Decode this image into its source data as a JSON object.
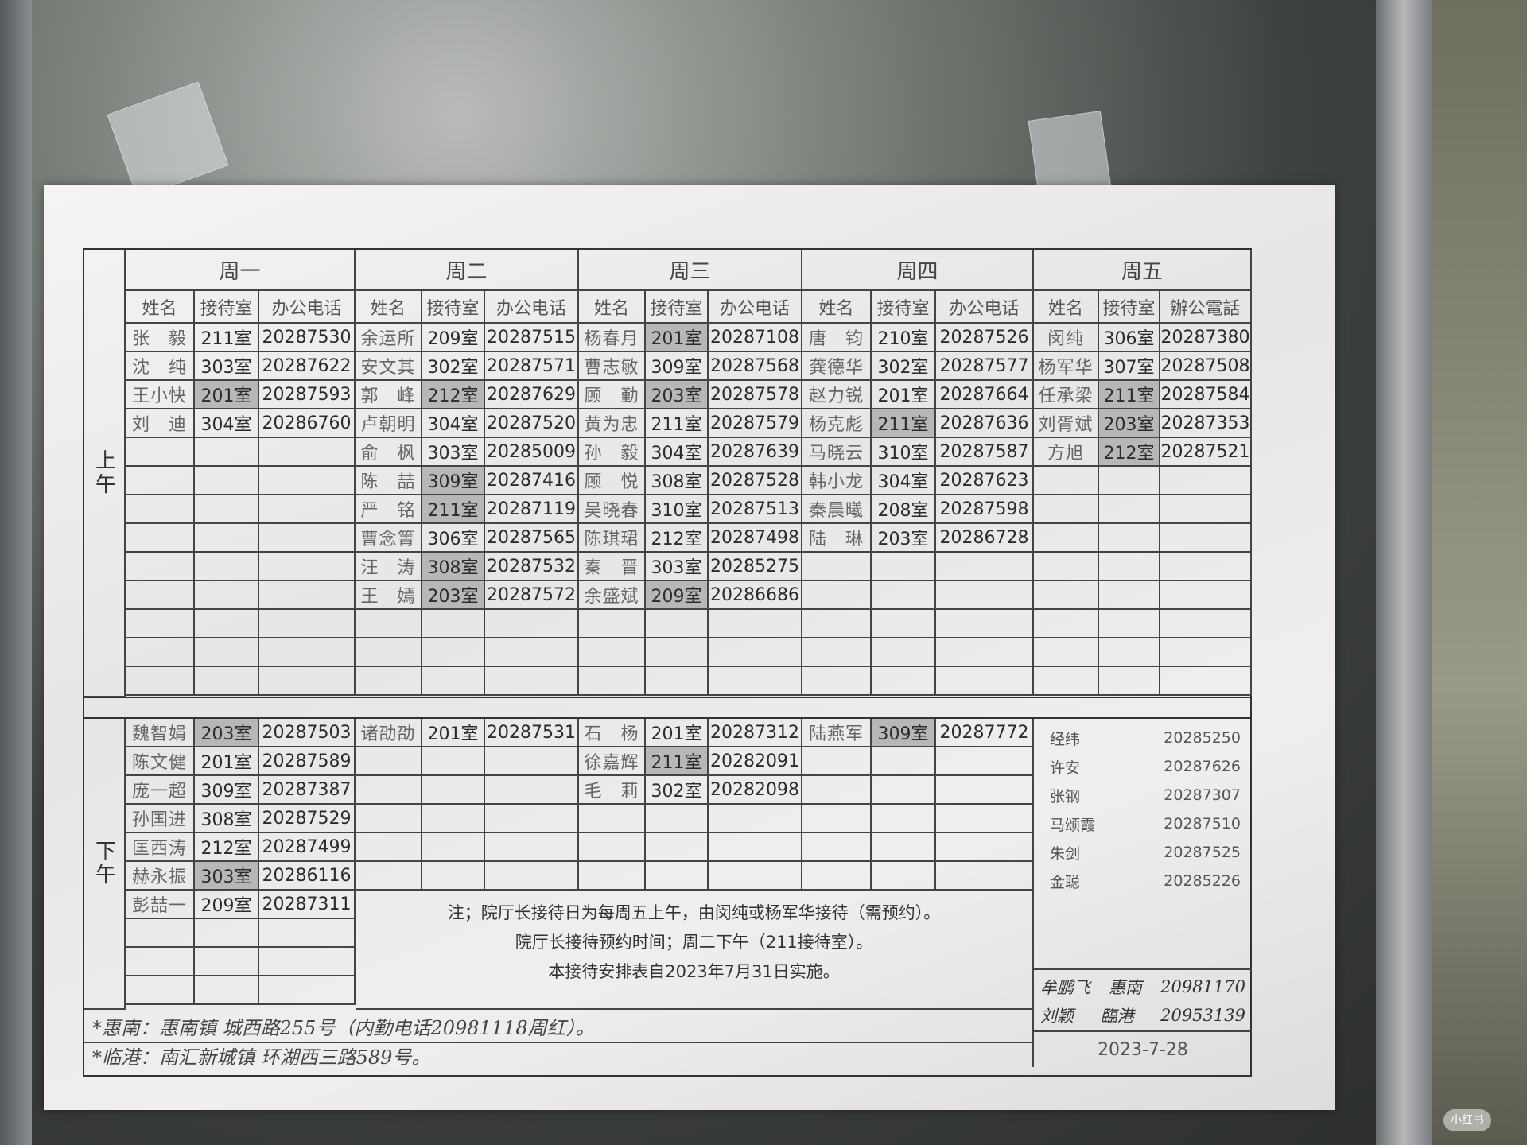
{
  "periods": {
    "am": "上午",
    "pm": "下午"
  },
  "days": [
    {
      "label": "周一",
      "headers": [
        "姓名",
        "接待室",
        "办公电话"
      ],
      "am": [
        {
          "n": "张　毅",
          "r": "211室",
          "p": "20287530",
          "s": false
        },
        {
          "n": "沈　纯",
          "r": "303室",
          "p": "20287622",
          "s": false
        },
        {
          "n": "王小快",
          "r": "201室",
          "p": "20287593",
          "s": true
        },
        {
          "n": "刘　迪",
          "r": "304室",
          "p": "20286760",
          "s": false
        }
      ],
      "pm": [
        {
          "n": "魏智娟",
          "r": "203室",
          "p": "20287503",
          "s": true
        },
        {
          "n": "陈文健",
          "r": "201室",
          "p": "20287589",
          "s": false
        },
        {
          "n": "庞一超",
          "r": "309室",
          "p": "20287387",
          "s": false
        },
        {
          "n": "孙国进",
          "r": "308室",
          "p": "20287529",
          "s": false
        },
        {
          "n": "匡西涛",
          "r": "212室",
          "p": "20287499",
          "s": false
        },
        {
          "n": "赫永振",
          "r": "303室",
          "p": "20286116",
          "s": true
        },
        {
          "n": "彭喆一",
          "r": "209室",
          "p": "20287311",
          "s": false
        }
      ]
    },
    {
      "label": "周二",
      "headers": [
        "姓名",
        "接待室",
        "办公电话"
      ],
      "am": [
        {
          "n": "余运所",
          "r": "209室",
          "p": "20287515",
          "s": false
        },
        {
          "n": "安文其",
          "r": "302室",
          "p": "20287571",
          "s": false
        },
        {
          "n": "郭　峰",
          "r": "212室",
          "p": "20287629",
          "s": true
        },
        {
          "n": "卢朝明",
          "r": "304室",
          "p": "20287520",
          "s": false
        },
        {
          "n": "俞　枫",
          "r": "303室",
          "p": "20285009",
          "s": false
        },
        {
          "n": "陈　喆",
          "r": "309室",
          "p": "20287416",
          "s": true
        },
        {
          "n": "严　铭",
          "r": "211室",
          "p": "20287119",
          "s": true
        },
        {
          "n": "曹念箐",
          "r": "306室",
          "p": "20287565",
          "s": false
        },
        {
          "n": "汪　涛",
          "r": "308室",
          "p": "20287532",
          "s": true
        },
        {
          "n": "王　嫣",
          "r": "203室",
          "p": "20287572",
          "s": true
        }
      ],
      "pm": [
        {
          "n": "诸劭劭",
          "r": "201室",
          "p": "20287531",
          "s": false
        }
      ]
    },
    {
      "label": "周三",
      "headers": [
        "姓名",
        "接待室",
        "办公电话"
      ],
      "am": [
        {
          "n": "杨春月",
          "r": "201室",
          "p": "20287108",
          "s": true
        },
        {
          "n": "曹志敏",
          "r": "309室",
          "p": "20287568",
          "s": false
        },
        {
          "n": "顾　勤",
          "r": "203室",
          "p": "20287578",
          "s": true
        },
        {
          "n": "黄为忠",
          "r": "211室",
          "p": "20287579",
          "s": false
        },
        {
          "n": "孙　毅",
          "r": "304室",
          "p": "20287639",
          "s": false
        },
        {
          "n": "顾　悦",
          "r": "308室",
          "p": "20287528",
          "s": false
        },
        {
          "n": "吴晓春",
          "r": "310室",
          "p": "20287513",
          "s": false
        },
        {
          "n": "陈琪珺",
          "r": "212室",
          "p": "20287498",
          "s": false
        },
        {
          "n": "秦　晋",
          "r": "303室",
          "p": "20285275",
          "s": false
        },
        {
          "n": "余盛斌",
          "r": "209室",
          "p": "20286686",
          "s": true
        }
      ],
      "pm": [
        {
          "n": "石　杨",
          "r": "201室",
          "p": "20287312",
          "s": false
        },
        {
          "n": "徐嘉辉",
          "r": "211室",
          "p": "20282091",
          "s": true
        },
        {
          "n": "毛　莉",
          "r": "302室",
          "p": "20282098",
          "s": false
        }
      ]
    },
    {
      "label": "周四",
      "headers": [
        "姓名",
        "接待室",
        "办公电话"
      ],
      "am": [
        {
          "n": "唐　钧",
          "r": "210室",
          "p": "20287526",
          "s": false
        },
        {
          "n": "龚德华",
          "r": "302室",
          "p": "20287577",
          "s": false
        },
        {
          "n": "赵力锐",
          "r": "201室",
          "p": "20287664",
          "s": false
        },
        {
          "n": "杨克彪",
          "r": "211室",
          "p": "20287636",
          "s": true
        },
        {
          "n": "马晓云",
          "r": "310室",
          "p": "20287587",
          "s": false
        },
        {
          "n": "韩小龙",
          "r": "304室",
          "p": "20287623",
          "s": false
        },
        {
          "n": "秦晨曦",
          "r": "208室",
          "p": "20287598",
          "s": false
        },
        {
          "n": "陆　琳",
          "r": "203室",
          "p": "20286728",
          "s": false
        }
      ],
      "pm": [
        {
          "n": "陆燕军",
          "r": "309室",
          "p": "20287772",
          "s": true
        }
      ]
    },
    {
      "label": "周五",
      "headers": [
        "姓名",
        "接待室",
        "辦公電話"
      ],
      "am": [
        {
          "n": "闵纯",
          "r": "306室",
          "p": "20287380",
          "s": false
        },
        {
          "n": "杨军华",
          "r": "307室",
          "p": "20287508",
          "s": false
        },
        {
          "n": "任承梁",
          "r": "211室",
          "p": "20287584",
          "s": true
        },
        {
          "n": "刘胥斌",
          "r": "203室",
          "p": "20287353",
          "s": true
        },
        {
          "n": "方旭",
          "r": "212室",
          "p": "20287521",
          "s": true
        }
      ],
      "pm": []
    }
  ],
  "friday_pm_list": [
    {
      "n": "经纬",
      "p": "20285250"
    },
    {
      "n": "许安",
      "p": "20287626"
    },
    {
      "n": "张钢",
      "p": "20287307"
    },
    {
      "n": "马颂霞",
      "p": "20287510"
    },
    {
      "n": "朱剑",
      "p": "20287525"
    },
    {
      "n": "金聪",
      "p": "20285226"
    }
  ],
  "leaders": [
    {
      "n": "牟鹏飞",
      "place": "惠南",
      "p": "20981170"
    },
    {
      "n": "刘颖",
      "place": "臨港",
      "p": "20953139"
    }
  ],
  "date": "2023-7-28",
  "notes": [
    "注；院厅长接待日为每周五上午，由闵纯或杨军华接待（需预约）。",
    "院厅长接待预约时间；周二下午（211接待室）。",
    "本接待安排表自2023年7月31日实施。"
  ],
  "addresses": [
    "*惠南：惠南镇 城西路255号（内勤电话20981118周红）。",
    "*临港：南汇新城镇 环湖西三路589号。"
  ],
  "watermark": "小红书",
  "colors": {
    "paper": "#ecedeb",
    "shaded_cell": "#b7b8b6",
    "ink": "#2b2b2b"
  }
}
